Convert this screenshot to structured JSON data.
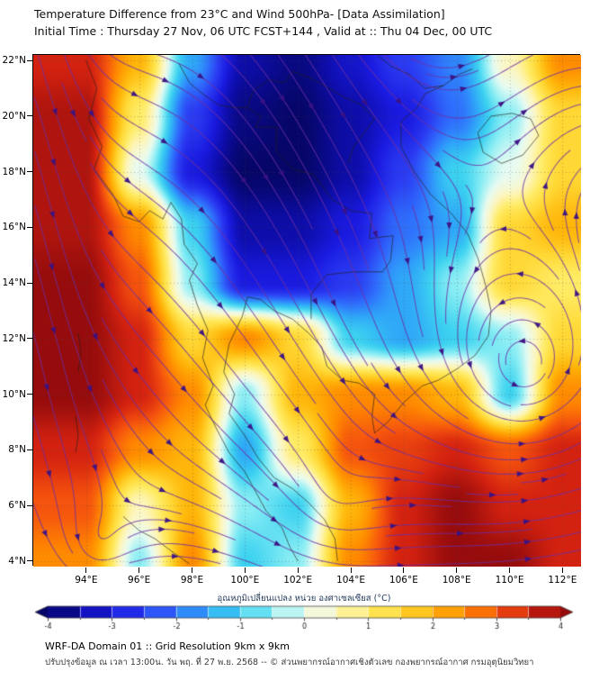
{
  "header": {
    "title_line1": "Temperature Difference from 23°C and Wind 500hPa- [Data Assimilation]",
    "title_line2": "Initial Time : Thursday 27 Nov, 06 UTC FCST+144 , Valid at ::  Thu 04 Dec, 00 UTC"
  },
  "axes": {
    "lat_ticks": [
      {
        "value": 22,
        "label": "22°N"
      },
      {
        "value": 20,
        "label": "20°N"
      },
      {
        "value": 18,
        "label": "18°N"
      },
      {
        "value": 16,
        "label": "16°N"
      },
      {
        "value": 14,
        "label": "14°N"
      },
      {
        "value": 12,
        "label": "12°N"
      },
      {
        "value": 10,
        "label": "10°N"
      },
      {
        "value": 8,
        "label": "8°N"
      },
      {
        "value": 6,
        "label": "6°N"
      },
      {
        "value": 4,
        "label": "4°N"
      }
    ],
    "lon_ticks": [
      {
        "value": 94,
        "label": "94°E"
      },
      {
        "value": 96,
        "label": "96°E"
      },
      {
        "value": 98,
        "label": "98°E"
      },
      {
        "value": 100,
        "label": "100°E"
      },
      {
        "value": 102,
        "label": "102°E"
      },
      {
        "value": 104,
        "label": "104°E"
      },
      {
        "value": 106,
        "label": "106°E"
      },
      {
        "value": 108,
        "label": "108°E"
      },
      {
        "value": 110,
        "label": "110°E"
      },
      {
        "value": 112,
        "label": "112°E"
      }
    ]
  },
  "colorbar": {
    "label": "อุณหภูมิเปลี่ยนแปลง หน่วย องศาเซลเซียส (°C)",
    "ticks": [
      {
        "value": -4,
        "label": "-4"
      },
      {
        "value": -3,
        "label": "-3"
      },
      {
        "value": -2,
        "label": "-2"
      },
      {
        "value": -1,
        "label": "-1"
      },
      {
        "value": 0,
        "label": "0"
      },
      {
        "value": 1,
        "label": "1"
      },
      {
        "value": 2,
        "label": "2"
      },
      {
        "value": 3,
        "label": "3"
      },
      {
        "value": 4,
        "label": "4"
      }
    ]
  },
  "footer": {
    "line1": "WRF-DA Domain 01 :: Grid Resolution 9km x 9km",
    "line2": "ปรับปรุงข้อมูล ณ เวลา 13:00น. วัน พฤ. ที่ 27 พ.ย. 2568 -- © ส่วนพยากรณ์อากาศเชิงตัวเลข กองพยากรณ์อากาศ กรมอุตุนิยมวิทยา"
  },
  "chart_data": {
    "type": "heatmap",
    "title": "Temperature Difference from 23°C and Wind 500hPa [Data Assimilation]",
    "units": "°C",
    "lon_range": [
      92.0,
      112.7
    ],
    "lat_range": [
      3.8,
      22.2
    ],
    "value_range": [
      -4,
      4
    ],
    "grid_lons": [
      94,
      96,
      98,
      100,
      102,
      104,
      106,
      108,
      110,
      112
    ],
    "grid_lats": [
      22,
      20,
      18,
      16,
      14,
      12,
      10,
      8,
      6,
      4
    ],
    "values": [
      [
        3.5,
        2.0,
        -1.5,
        -3.5,
        -3.8,
        -3.2,
        -2.5,
        -1.8,
        0.5,
        2.5
      ],
      [
        3.8,
        1.0,
        -2.5,
        -3.8,
        -4.0,
        -3.5,
        -3.0,
        -2.0,
        -0.5,
        1.5
      ],
      [
        3.8,
        0.0,
        -3.0,
        -4.0,
        -4.0,
        -3.5,
        -2.5,
        -1.0,
        0.0,
        1.5
      ],
      [
        3.8,
        2.5,
        -1.0,
        -3.5,
        -3.5,
        -3.0,
        -2.0,
        -1.5,
        1.5,
        2.0
      ],
      [
        4.0,
        3.0,
        -0.5,
        -3.0,
        -3.0,
        -2.5,
        -1.5,
        -0.5,
        1.5,
        1.0
      ],
      [
        4.0,
        3.5,
        1.5,
        2.5,
        1.5,
        -1.0,
        -1.5,
        -1.0,
        -0.5,
        1.5
      ],
      [
        4.0,
        3.5,
        2.5,
        -0.5,
        2.0,
        2.5,
        2.5,
        2.0,
        -1.0,
        2.5
      ],
      [
        3.5,
        2.5,
        2.0,
        -1.5,
        1.0,
        3.0,
        3.2,
        3.5,
        3.0,
        3.5
      ],
      [
        3.0,
        0.5,
        2.0,
        -0.5,
        -1.0,
        2.0,
        3.5,
        4.0,
        3.5,
        3.5
      ],
      [
        2.5,
        -0.5,
        2.5,
        -1.0,
        -0.5,
        2.5,
        3.5,
        4.0,
        4.0,
        3.5
      ]
    ],
    "palette": [
      [
        -4.0,
        "#060668"
      ],
      [
        -3.5,
        "#0d0da8"
      ],
      [
        -3.0,
        "#1a1ae0"
      ],
      [
        -2.5,
        "#2b3bf2"
      ],
      [
        -2.0,
        "#2f6ffc"
      ],
      [
        -1.5,
        "#2fa8f8"
      ],
      [
        -1.0,
        "#3cd2f0"
      ],
      [
        -0.5,
        "#8ceef4"
      ],
      [
        0.0,
        "#e8fbf2"
      ],
      [
        0.5,
        "#fdf6c0"
      ],
      [
        1.0,
        "#ffec66"
      ],
      [
        1.5,
        "#ffd835"
      ],
      [
        2.0,
        "#ffb60a"
      ],
      [
        2.5,
        "#ff8c00"
      ],
      [
        3.0,
        "#f5540e"
      ],
      [
        3.5,
        "#d42210"
      ],
      [
        4.0,
        "#960c0c"
      ]
    ],
    "wind": {
      "base_u": 1.0,
      "base_v": -0.18,
      "wave_amp": 0.3,
      "vortices": [
        {
          "lon": 110.6,
          "lat": 10.8,
          "strength": 5.5,
          "core": 2.0
        },
        {
          "lon": 94.3,
          "lat": 4.4,
          "strength": 2.5,
          "core": 1.0
        },
        {
          "lon": 103.4,
          "lat": 5.9,
          "strength": 1.8,
          "core": 1.6
        }
      ]
    },
    "coastlines": [
      [
        [
          94.0,
          22.0
        ],
        [
          94.4,
          21.0
        ],
        [
          94.1,
          19.9
        ],
        [
          94.6,
          18.9
        ],
        [
          94.3,
          18.1
        ],
        [
          95.0,
          17.2
        ],
        [
          95.4,
          16.4
        ],
        [
          96.0,
          16.2
        ],
        [
          96.4,
          16.6
        ],
        [
          96.9,
          16.3
        ],
        [
          97.2,
          16.9
        ],
        [
          97.6,
          16.3
        ],
        [
          97.7,
          15.4
        ],
        [
          98.2,
          14.7
        ],
        [
          97.9,
          14.1
        ],
        [
          98.2,
          13.2
        ],
        [
          98.6,
          12.3
        ],
        [
          98.4,
          11.3
        ],
        [
          98.8,
          10.3
        ],
        [
          98.5,
          9.6
        ],
        [
          98.9,
          8.8
        ],
        [
          99.4,
          7.9
        ],
        [
          100.0,
          7.2
        ],
        [
          100.4,
          6.5
        ],
        [
          100.8,
          5.8
        ],
        [
          101.4,
          5.2
        ],
        [
          101.7,
          4.5
        ],
        [
          102.0,
          4.0
        ]
      ],
      [
        [
          100.1,
          13.5
        ],
        [
          100.6,
          13.4
        ],
        [
          101.1,
          13.0
        ],
        [
          101.8,
          12.7
        ],
        [
          102.4,
          12.2
        ],
        [
          102.9,
          11.7
        ],
        [
          103.1,
          11.0
        ],
        [
          103.7,
          10.5
        ],
        [
          104.3,
          10.4
        ],
        [
          104.9,
          10.0
        ],
        [
          104.8,
          9.2
        ],
        [
          104.9,
          8.6
        ],
        [
          105.4,
          9.0
        ],
        [
          106.0,
          9.7
        ],
        [
          106.7,
          10.3
        ],
        [
          107.3,
          10.5
        ],
        [
          108.0,
          10.9
        ],
        [
          108.7,
          11.4
        ],
        [
          109.2,
          12.1
        ],
        [
          109.3,
          13.0
        ],
        [
          109.1,
          13.9
        ],
        [
          108.8,
          14.9
        ],
        [
          108.4,
          15.8
        ],
        [
          107.8,
          16.5
        ],
        [
          107.0,
          17.2
        ],
        [
          106.4,
          18.0
        ],
        [
          105.9,
          18.9
        ],
        [
          105.9,
          19.8
        ],
        [
          106.5,
          20.3
        ],
        [
          106.8,
          20.8
        ],
        [
          107.5,
          21.1
        ],
        [
          108.1,
          21.5
        ],
        [
          108.6,
          21.7
        ]
      ],
      [
        [
          100.1,
          13.5
        ],
        [
          99.9,
          12.8
        ],
        [
          99.4,
          11.8
        ],
        [
          99.2,
          10.8
        ],
        [
          99.6,
          10.0
        ],
        [
          99.4,
          9.3
        ],
        [
          100.0,
          8.5
        ],
        [
          100.5,
          7.7
        ],
        [
          101.1,
          7.0
        ],
        [
          101.8,
          6.6
        ],
        [
          102.4,
          6.1
        ],
        [
          103.0,
          5.5
        ],
        [
          103.4,
          4.8
        ],
        [
          103.5,
          4.0
        ]
      ],
      [
        [
          100.1,
          20.3
        ],
        [
          100.6,
          20.0
        ],
        [
          100.4,
          19.6
        ],
        [
          101.2,
          19.6
        ],
        [
          101.2,
          18.7
        ],
        [
          101.8,
          18.1
        ],
        [
          102.6,
          17.9
        ],
        [
          103.3,
          17.0
        ],
        [
          104.0,
          16.6
        ],
        [
          104.8,
          16.5
        ],
        [
          104.7,
          15.6
        ],
        [
          105.6,
          15.7
        ],
        [
          105.5,
          14.8
        ],
        [
          105.2,
          14.4
        ],
        [
          104.1,
          14.4
        ],
        [
          103.1,
          14.3
        ],
        [
          102.5,
          13.6
        ],
        [
          102.5,
          12.7
        ]
      ],
      [
        [
          97.5,
          21.9
        ],
        [
          97.9,
          21.2
        ],
        [
          98.4,
          20.8
        ],
        [
          99.0,
          20.4
        ],
        [
          99.6,
          20.3
        ],
        [
          100.1,
          20.3
        ],
        [
          100.3,
          20.9
        ],
        [
          100.9,
          21.3
        ],
        [
          101.5,
          21.2
        ],
        [
          101.8,
          21.6
        ],
        [
          102.4,
          21.4
        ],
        [
          103.0,
          21.1
        ],
        [
          103.7,
          20.7
        ],
        [
          104.4,
          20.4
        ],
        [
          104.9,
          19.9
        ],
        [
          104.5,
          19.4
        ],
        [
          104.1,
          18.9
        ],
        [
          103.9,
          18.3
        ]
      ],
      [
        [
          105.0,
          22.2
        ],
        [
          105.5,
          21.8
        ],
        [
          106.2,
          21.5
        ],
        [
          106.8,
          21.0
        ],
        [
          107.5,
          21.1
        ]
      ],
      [
        [
          108.8,
          19.4
        ],
        [
          109.3,
          20.0
        ],
        [
          110.1,
          20.1
        ],
        [
          110.8,
          19.9
        ],
        [
          111.1,
          19.3
        ],
        [
          110.5,
          18.6
        ],
        [
          109.7,
          18.3
        ],
        [
          109.0,
          18.7
        ],
        [
          108.8,
          19.4
        ]
      ],
      [
        [
          95.4,
          5.6
        ],
        [
          96.0,
          5.1
        ],
        [
          96.6,
          4.8
        ],
        [
          97.3,
          4.3
        ],
        [
          97.9,
          3.9
        ]
      ],
      [
        [
          93.7,
          12.2
        ],
        [
          93.8,
          11.5
        ],
        [
          93.7,
          10.8
        ]
      ],
      [
        [
          93.6,
          9.2
        ],
        [
          93.7,
          8.5
        ],
        [
          93.6,
          7.9
        ]
      ]
    ]
  }
}
